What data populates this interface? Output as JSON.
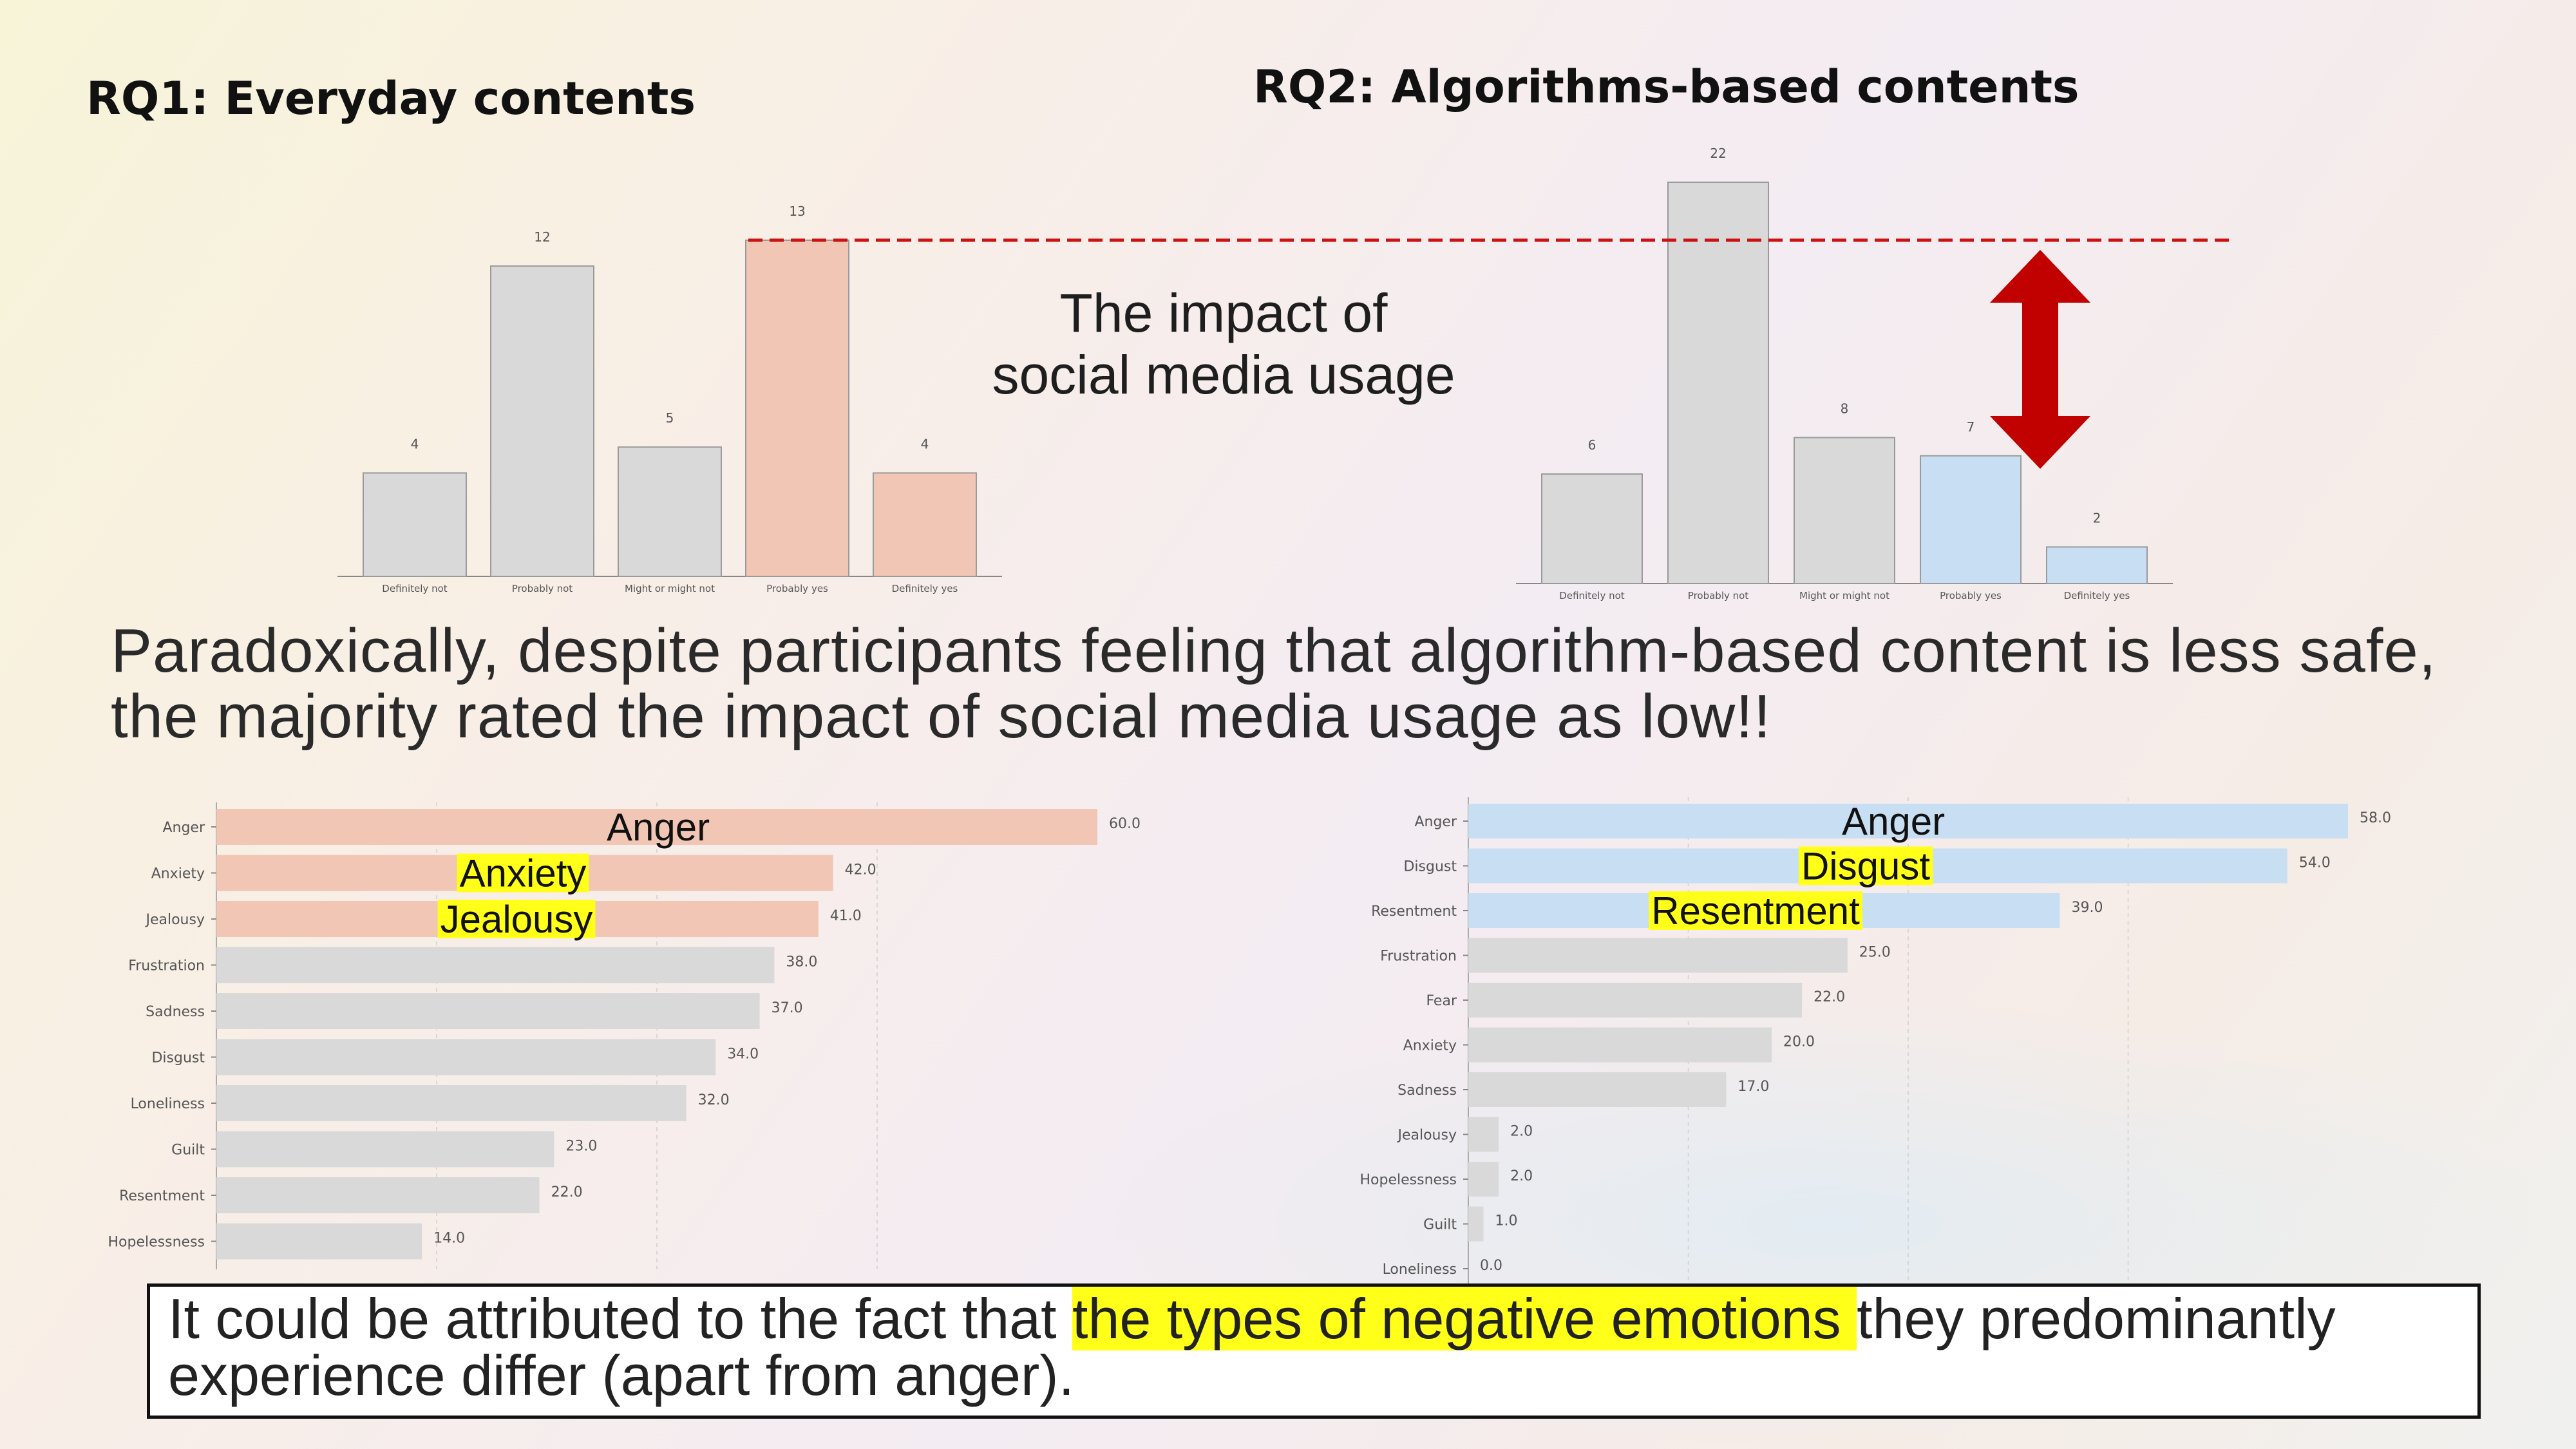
{
  "headings": {
    "rq1": "RQ1: Everyday contents",
    "rq2": "RQ2: Algorithms-based contents"
  },
  "impact_label": {
    "line1": "The impact of",
    "line2": "social media usage"
  },
  "paradox": {
    "line1": "Paradoxically, despite participants feeling that algorithm-based content is less safe,",
    "line2": "the majority rated the impact of social media usage as low!!"
  },
  "callout": {
    "pre": "It could be attributed to the fact that ",
    "highlight": "the types of negative emotions ",
    "post": "they predominantly",
    "line2": "experience differ (apart from anger)."
  },
  "colors": {
    "gray_bar": "#d9d9d9",
    "salmon_bar": "#f2c6b4",
    "blue_bar": "#c8dff3",
    "highlight": "#ffff1a",
    "dashed_line": "#cc1111",
    "arrow": "#c10000"
  },
  "chart_data": [
    {
      "id": "rq1_impact",
      "type": "bar",
      "categories": [
        "Definitely not",
        "Probably not",
        "Might or might not",
        "Probably yes",
        "Definitely yes"
      ],
      "values": [
        4,
        12,
        5,
        13,
        4
      ],
      "highlighted": [
        false,
        false,
        false,
        true,
        true
      ],
      "ylim": [
        0,
        13
      ]
    },
    {
      "id": "rq2_impact",
      "type": "bar",
      "categories": [
        "Definitely not",
        "Probably not",
        "Might or might not",
        "Probably yes",
        "Definitely yes"
      ],
      "values": [
        6,
        22,
        8,
        7,
        2
      ],
      "highlighted": [
        false,
        false,
        false,
        true,
        true
      ],
      "ylim": [
        0,
        22
      ]
    },
    {
      "id": "rq1_emotions",
      "type": "bar",
      "orientation": "horizontal",
      "categories": [
        "Anger",
        "Anxiety",
        "Jealousy",
        "Frustration",
        "Sadness",
        "Disgust",
        "Loneliness",
        "Guilt",
        "Resentment",
        "Hopelessness"
      ],
      "values": [
        60.0,
        42.0,
        41.0,
        38.0,
        37.0,
        34.0,
        32.0,
        23.0,
        22.0,
        14.0
      ],
      "highlighted": [
        true,
        true,
        true,
        false,
        false,
        false,
        false,
        false,
        false,
        false
      ],
      "overlay_labels": [
        "Anger",
        "Anxiety",
        "Jealousy"
      ],
      "xlim": [
        0,
        60
      ]
    },
    {
      "id": "rq2_emotions",
      "type": "bar",
      "orientation": "horizontal",
      "categories": [
        "Anger",
        "Disgust",
        "Resentment",
        "Frustration",
        "Fear",
        "Anxiety",
        "Sadness",
        "Jealousy",
        "Hopelessness",
        "Guilt",
        "Loneliness"
      ],
      "values": [
        58.0,
        54.0,
        39.0,
        25.0,
        22.0,
        20.0,
        17.0,
        2.0,
        2.0,
        1.0,
        0.0
      ],
      "highlighted": [
        true,
        true,
        true,
        false,
        false,
        false,
        false,
        false,
        false,
        false,
        false
      ],
      "overlay_labels": [
        "Anger",
        "Disgust",
        "Resentment"
      ],
      "xlim": [
        0,
        58
      ]
    }
  ]
}
